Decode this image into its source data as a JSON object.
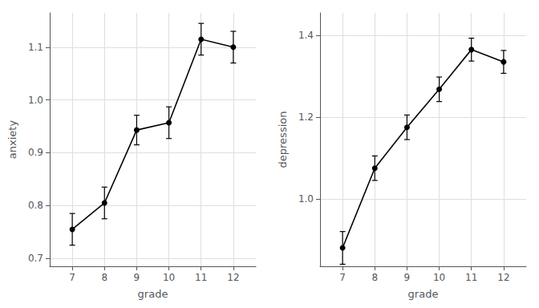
{
  "chart_data": [
    {
      "type": "line",
      "x": [
        7,
        8,
        9,
        10,
        11,
        12
      ],
      "values": [
        0.755,
        0.805,
        0.943,
        0.957,
        1.115,
        1.1
      ],
      "errors": [
        0.03,
        0.03,
        0.028,
        0.03,
        0.03,
        0.03
      ],
      "xlabel": "grade",
      "ylabel": "anxiety",
      "xlim": [
        6.3,
        12.7
      ],
      "xticks": [
        7,
        8,
        9,
        10,
        11,
        12
      ],
      "ylim": [
        0.685,
        1.165
      ],
      "yticks": [
        0.7,
        0.8,
        0.9,
        {
          "value": 1.0,
          "label": "1.0"
        },
        1.1
      ],
      "color": "#000000",
      "marker": "circle",
      "grid": true
    },
    {
      "type": "line",
      "x": [
        7,
        8,
        9,
        10,
        11,
        12
      ],
      "values": [
        0.88,
        1.075,
        1.175,
        1.268,
        1.365,
        1.335
      ],
      "errors": [
        0.04,
        0.03,
        0.03,
        0.03,
        0.028,
        0.028
      ],
      "xlabel": "grade",
      "ylabel": "depression",
      "xlim": [
        6.3,
        12.7
      ],
      "xticks": [
        7,
        8,
        9,
        10,
        11,
        12
      ],
      "ylim": [
        0.835,
        1.455
      ],
      "yticks": [
        {
          "value": 1.0,
          "label": "1.0"
        },
        1.2,
        1.4
      ],
      "color": "#000000",
      "marker": "circle",
      "grid": true
    }
  ]
}
